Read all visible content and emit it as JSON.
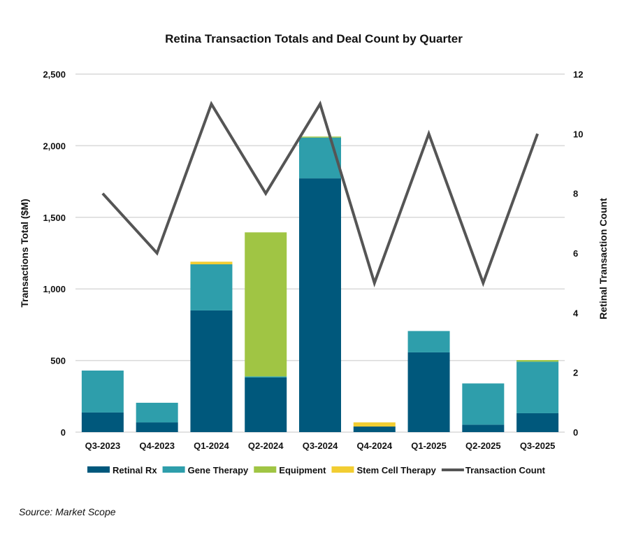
{
  "chart_data": {
    "type": "bar",
    "stacked": true,
    "title": "Retina Transaction Totals and Deal Count by Quarter",
    "ylabel": "Transactions Total ($M)",
    "y2label": "Retinal Transaction Count",
    "ylim": [
      0,
      2500
    ],
    "y2lim": [
      0,
      12
    ],
    "yticks": [
      "0",
      "500",
      "1,000",
      "1,500",
      "2,000",
      "2,500"
    ],
    "y2ticks": [
      "0",
      "2",
      "4",
      "6",
      "8",
      "10",
      "12"
    ],
    "grid": true,
    "legend_position": "bottom",
    "categories": [
      "Q3-2023",
      "Q4-2023",
      "Q1-2024",
      "Q2-2024",
      "Q3-2024",
      "Q4-2024",
      "Q1-2025",
      "Q2-2025",
      "Q3-2025"
    ],
    "series": [
      {
        "name": "Retinal Rx",
        "color": "#00587c",
        "values": [
          137,
          68,
          850,
          381,
          1772,
          39,
          557,
          52,
          132
        ]
      },
      {
        "name": "Gene Therapy",
        "color": "#2e9eab",
        "values": [
          293,
          137,
          322,
          8,
          285,
          0,
          149,
          288,
          360
        ]
      },
      {
        "name": "Equipment",
        "color": "#a0c544",
        "values": [
          0,
          0,
          0,
          1006,
          7,
          0,
          0,
          0,
          11
        ]
      },
      {
        "name": "Stem Cell Therapy",
        "color": "#f2cd32",
        "values": [
          0,
          0,
          18,
          0,
          0,
          29,
          0,
          0,
          0
        ]
      }
    ],
    "line_series": {
      "name": "Transaction Count",
      "color": "#555555",
      "axis": "right",
      "values": [
        8,
        6,
        11,
        8,
        11,
        5,
        10,
        5,
        10
      ]
    }
  },
  "source": "Source: Market Scope"
}
